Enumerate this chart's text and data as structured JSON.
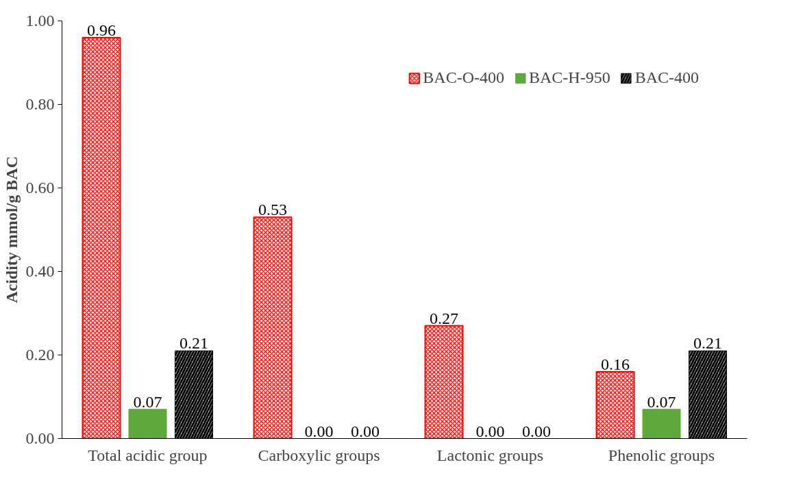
{
  "chart_data": {
    "type": "bar",
    "ylabel": "Acidity mmol/g BAC",
    "categories": [
      "Total acidic group",
      "Carboxylic groups",
      "Lactonic groups",
      "Phenolic groups"
    ],
    "series": [
      {
        "name": "BAC-O-400",
        "color": "#ff0000",
        "values": [
          0.96,
          0.53,
          0.27,
          0.16
        ],
        "value_labels": [
          "0.96",
          "0.53",
          "0.27",
          "0.16"
        ]
      },
      {
        "name": "BAC-H-950",
        "color": "#5fa83a",
        "values": [
          0.07,
          0,
          0,
          0.07
        ],
        "value_labels": [
          "0.07",
          "0.00",
          "0.00",
          "0.07"
        ]
      },
      {
        "name": "BAC-400",
        "color": "#000000",
        "values": [
          0.21,
          0,
          0,
          0.21
        ],
        "value_labels": [
          "0.21",
          "0.00",
          "0.00",
          "0.21"
        ]
      }
    ],
    "ylim": [
      0,
      1
    ],
    "yticks": [
      {
        "value": 0,
        "label": "0.00"
      },
      {
        "value": 0.2,
        "label": "0.20"
      },
      {
        "value": 0.4,
        "label": "0.40"
      },
      {
        "value": 0.6,
        "label": "0.60"
      },
      {
        "value": 0.8,
        "label": "0.80"
      },
      {
        "value": 1,
        "label": "1.00"
      }
    ],
    "grid": false,
    "legend": "top right"
  }
}
